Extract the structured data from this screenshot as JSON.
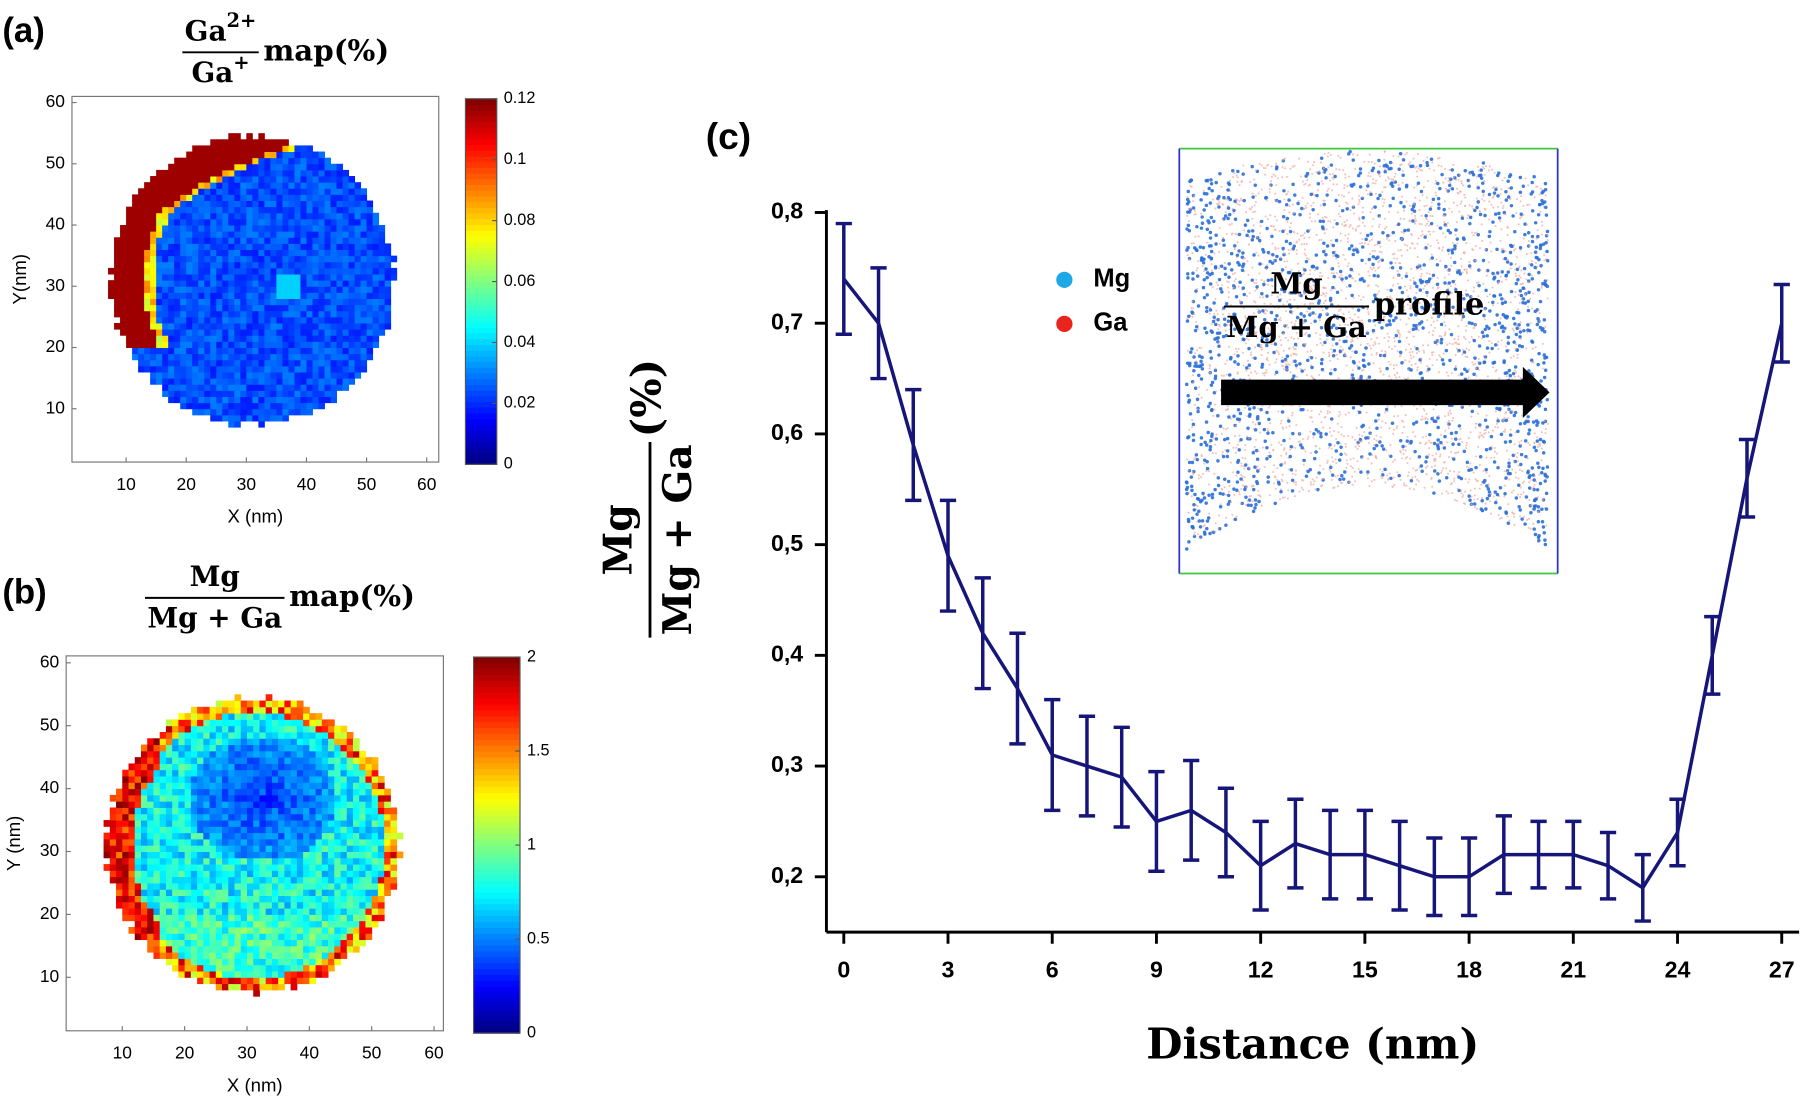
{
  "chart_data": [
    {
      "type": "heatmap",
      "panel_label": "(a)",
      "title": {
        "numerator": "Ga",
        "numerator_sup": "2+",
        "denominator": "Ga",
        "denominator_sup": "+",
        "suffix": "map(%)"
      },
      "xlabel": "X (nm)",
      "ylabel": "Y(nm)",
      "xlim": [
        1,
        62
      ],
      "xticks": [
        10,
        20,
        30,
        40,
        50,
        60
      ],
      "ylim": [
        1.3,
        61
      ],
      "yticks": [
        10,
        20,
        30,
        40,
        50,
        60
      ],
      "colorbar": {
        "lim": [
          0,
          0.12
        ],
        "ticks": [
          0,
          0.02,
          0.04,
          0.06,
          0.08,
          0.1,
          0.12
        ]
      }
    },
    {
      "type": "heatmap",
      "panel_label": "(b)",
      "title": {
        "numerator": "Mg",
        "denominator": "Mg + Ga",
        "suffix": "map(%)"
      },
      "xlabel": "X (nm)",
      "ylabel": "Y (nm)",
      "xlim": [
        1,
        61.5
      ],
      "xticks": [
        10,
        20,
        30,
        40,
        50,
        60
      ],
      "ylim": [
        1.5,
        61.1
      ],
      "yticks": [
        10,
        20,
        30,
        40,
        50,
        60
      ],
      "colorbar": {
        "lim": [
          0,
          2
        ],
        "ticks": [
          0,
          0.5,
          1,
          1.5,
          2
        ]
      }
    },
    {
      "type": "line",
      "panel_label": "(c)",
      "xlabel": "Distance (nm)",
      "ylabel": {
        "numerator": "Mg",
        "denominator": "Mg + Ga",
        "suffix": "(%)"
      },
      "x": [
        0,
        1,
        2,
        3,
        4,
        5,
        6,
        7,
        8,
        9,
        10,
        11,
        12,
        13,
        14,
        15,
        16,
        17,
        18,
        19,
        20,
        21,
        22,
        23,
        24,
        25,
        26,
        27
      ],
      "series": [
        {
          "color": "#16167a",
          "values": [
            0.74,
            0.7,
            0.59,
            0.49,
            0.42,
            0.37,
            0.31,
            0.3,
            0.29,
            0.25,
            0.26,
            0.24,
            0.21,
            0.23,
            0.22,
            0.22,
            0.21,
            0.2,
            0.2,
            0.22,
            0.22,
            0.22,
            0.21,
            0.19,
            0.24,
            0.4,
            0.56,
            0.7
          ],
          "errors": [
            0.05,
            0.05,
            0.05,
            0.05,
            0.05,
            0.05,
            0.05,
            0.045,
            0.045,
            0.045,
            0.045,
            0.04,
            0.04,
            0.04,
            0.04,
            0.04,
            0.04,
            0.035,
            0.035,
            0.035,
            0.03,
            0.03,
            0.03,
            0.03,
            0.03,
            0.035,
            0.035,
            0.035
          ]
        }
      ],
      "xlim": [
        -0.5,
        27.5
      ],
      "xticks": [
        0,
        3,
        6,
        9,
        12,
        15,
        18,
        21,
        24,
        27
      ],
      "ylim": [
        0.15,
        0.8
      ],
      "yticks": [
        {
          "value": 0.2,
          "label": "0,2"
        },
        {
          "value": 0.3,
          "label": "0,3"
        },
        {
          "value": 0.4,
          "label": "0,4"
        },
        {
          "value": 0.5,
          "label": "0,5"
        },
        {
          "value": 0.6,
          "label": "0,6"
        },
        {
          "value": 0.7,
          "label": "0,7"
        },
        {
          "value": 0.8,
          "label": "0,8"
        }
      ],
      "inset": {
        "legend": [
          {
            "name": "Mg",
            "color": "#1ea8e6"
          },
          {
            "name": "Ga",
            "color": "#e8241c"
          }
        ],
        "label": {
          "numerator": "Mg",
          "denominator": "Mg + Ga",
          "suffix": "profile"
        }
      }
    }
  ]
}
